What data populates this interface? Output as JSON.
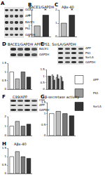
{
  "chart_data": [
    {
      "type": "bar",
      "title": "BACE1/GAPDH",
      "categories": [
        null,
        null
      ],
      "values": [
        1.0,
        2.0
      ],
      "colors": [
        "#bbbbbb",
        "#333333"
      ],
      "ylim": [
        0,
        2.5
      ],
      "yticks": [
        0,
        1,
        2
      ],
      "tick_labels": "y",
      "annotations": [
        {
          "text": "B"
        },
        {
          "text": "*",
          "x": 1
        }
      ]
    },
    {
      "type": "bar",
      "title": "Aβx-40",
      "categories": [
        null,
        null
      ],
      "values": [
        1.0,
        1.6
      ],
      "colors": [
        "#bbbbbb",
        "#333333"
      ],
      "ylim": [
        0,
        2
      ],
      "yticks": [
        0,
        1,
        2
      ],
      "tick_labels": "y",
      "annotations": [
        {
          "text": "C"
        },
        {
          "text": "*",
          "x": 1
        }
      ]
    },
    {
      "type": "bar",
      "title": "BACE1/GAPDH",
      "categories": [
        null,
        null,
        null,
        null
      ],
      "values": [
        1.0,
        0.6,
        1.0,
        0.7
      ],
      "colors": [
        "#ffffff",
        "#bbbbbb",
        "#777777",
        "#333333"
      ],
      "ylim": [
        0,
        1.5
      ],
      "yticks": [
        0,
        0.5,
        1,
        1.5
      ],
      "tick_labels": "y",
      "annotations": [
        {
          "text": "D"
        }
      ]
    },
    {
      "type": "bar",
      "title": "APP, PS1, SorLA/GAPDH",
      "categories": [
        null,
        null,
        null,
        null
      ],
      "series": [
        {
          "name": "APP",
          "color": "#ffffff",
          "values": [
            1.0,
            1.1,
            0.9,
            1.0
          ]
        },
        {
          "name": "PS1",
          "color": "#999999",
          "values": [
            1.0,
            1.0,
            1.1,
            0.9
          ]
        },
        {
          "name": "SorLA",
          "color": "#333333",
          "values": [
            1.0,
            0.7,
            0.8,
            0.6
          ]
        }
      ],
      "ylim": [
        0,
        1.5
      ],
      "yticks": [
        0,
        0.5,
        1,
        1.5
      ],
      "tick_labels": "y",
      "legend": "right",
      "annotations": [
        {
          "text": "E"
        }
      ]
    },
    {
      "type": "bar",
      "title": "C99/APP",
      "categories": [
        null,
        null,
        null,
        null
      ],
      "values": [
        1.0,
        1.5,
        1.0,
        1.2
      ],
      "colors": [
        "#ffffff",
        "#bbbbbb",
        "#777777",
        "#333333"
      ],
      "ylim": [
        0,
        2
      ],
      "yticks": [
        0,
        1,
        2
      ],
      "tick_labels": "y",
      "annotations": [
        {
          "text": "F"
        }
      ]
    },
    {
      "type": "bar",
      "title": "β-secretase activity",
      "categories": [
        null,
        null,
        null,
        null
      ],
      "values": [
        1.0,
        1.1,
        1.0,
        0.9
      ],
      "colors": [
        "#ffffff",
        "#bbbbbb",
        "#777777",
        "#333333"
      ],
      "ylim": [
        0,
        1.5
      ],
      "yticks": [
        0,
        0.5,
        1,
        1.5
      ],
      "tick_labels": "y",
      "annotations": [
        {
          "text": "G"
        }
      ]
    },
    {
      "type": "bar",
      "title": "Aβx-40",
      "categories": [
        null,
        null,
        null,
        null
      ],
      "values": [
        1.0,
        1.3,
        1.0,
        0.9
      ],
      "colors": [
        "#ffffff",
        "#bbbbbb",
        "#777777",
        "#333333"
      ],
      "ylim": [
        0,
        1.5
      ],
      "yticks": [
        0,
        0.5,
        1,
        1.5
      ],
      "tick_labels": "y",
      "annotations": [
        {
          "text": "H"
        }
      ]
    }
  ],
  "blots": [
    {
      "panel": "A",
      "labels": [
        "GGA1",
        "APP",
        "BACE1",
        "PS1",
        "GAPDH"
      ]
    },
    {
      "labels": [
        "BACE1",
        "GAPDH"
      ]
    },
    {
      "labels": [
        "APP",
        "PS1",
        "SorLA",
        "GAPDH"
      ]
    },
    {
      "labels": [
        "C99",
        "APP",
        "GAPDH"
      ]
    }
  ]
}
